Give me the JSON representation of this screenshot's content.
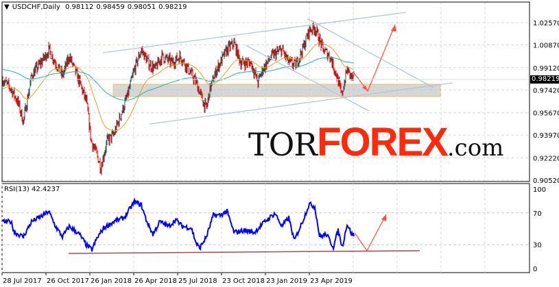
{
  "header": {
    "symbol": "USDCHF,Daily",
    "open": "0.98112",
    "high": "0.98459",
    "low": "0.98051",
    "close": "0.98219"
  },
  "rsi_label": "RSI(13) 42.4237",
  "current_price": "0.98219",
  "logo": {
    "tor": "TOR",
    "forex": "FOREX",
    "com": ".com"
  },
  "colors": {
    "bull": "#2f4f4f",
    "bear": "#ff0000",
    "ema_fast": "#daa520",
    "ema_slow": "#20b2aa",
    "rsi": "#0000ff",
    "arrow": "#ff4c3b",
    "trend": "#b0c4de"
  },
  "chart_data": [
    {
      "type": "candlestick",
      "title": "USDCHF,Daily",
      "ylim": [
        0.9052,
        1.0257
      ],
      "y_ticks": [
        "1.02570",
        "1.00870",
        "0.99120",
        "0.97420",
        "0.95670",
        "0.93970",
        "0.92220",
        "0.90520"
      ],
      "x_ticks": [
        "28 Jul 2017",
        "26 Oct 2017",
        "26 Jan 2018",
        "26 Apr 2018",
        "25 Jul 2018",
        "23 Oct 2018",
        "23 Jan 2019",
        "23 Apr 2019"
      ],
      "close_keypoints_bar_price": [
        [
          0,
          0.982
        ],
        [
          12,
          0.975
        ],
        [
          22,
          0.965
        ],
        [
          30,
          0.95
        ],
        [
          42,
          0.985
        ],
        [
          62,
          1.0
        ],
        [
          67,
          1.005
        ],
        [
          77,
          0.995
        ],
        [
          87,
          0.985
        ],
        [
          97,
          1.0
        ],
        [
          112,
          0.98
        ],
        [
          122,
          0.965
        ],
        [
          129,
          0.935
        ],
        [
          137,
          0.925
        ],
        [
          143,
          0.915
        ],
        [
          152,
          0.935
        ],
        [
          162,
          0.94
        ],
        [
          172,
          0.955
        ],
        [
          182,
          0.97
        ],
        [
          192,
          0.99
        ],
        [
          202,
          1.005
        ],
        [
          212,
          0.995
        ],
        [
          222,
          0.99
        ],
        [
          232,
          1.0
        ],
        [
          247,
          0.995
        ],
        [
          259,
          1.0
        ],
        [
          267,
          0.993
        ],
        [
          282,
          0.98
        ],
        [
          292,
          0.965
        ],
        [
          297,
          0.96
        ],
        [
          302,
          0.975
        ],
        [
          312,
          0.99
        ],
        [
          327,
          1.005
        ],
        [
          337,
          1.01
        ],
        [
          347,
          0.995
        ],
        [
          362,
          0.995
        ],
        [
          372,
          0.98
        ],
        [
          379,
          0.99
        ],
        [
          392,
          1.0
        ],
        [
          407,
          1.005
        ],
        [
          417,
          0.995
        ],
        [
          427,
          0.993
        ],
        [
          437,
          1.005
        ],
        [
          447,
          1.02
        ],
        [
          455,
          1.022
        ],
        [
          467,
          1.005
        ],
        [
          477,
          1.0
        ],
        [
          487,
          0.985
        ],
        [
          494,
          0.97
        ],
        [
          502,
          0.99
        ],
        [
          507,
          0.985
        ],
        [
          512,
          0.98219
        ]
      ]
    },
    {
      "type": "line",
      "title": "RSI(13) 42.4237",
      "ylim": [
        0,
        100
      ],
      "y_ticks": [
        "100",
        "70",
        "30",
        "0"
      ],
      "keypoints_bar_value": [
        [
          0,
          58.8
        ],
        [
          12,
          59
        ],
        [
          17,
          45.5
        ],
        [
          30,
          40
        ],
        [
          42,
          59
        ],
        [
          59,
          67
        ],
        [
          67,
          72
        ],
        [
          77,
          53
        ],
        [
          87,
          40
        ],
        [
          97,
          53
        ],
        [
          112,
          43
        ],
        [
          122,
          29.5
        ],
        [
          130,
          23.6
        ],
        [
          137,
          37.5
        ],
        [
          147,
          51
        ],
        [
          162,
          59
        ],
        [
          177,
          64
        ],
        [
          192,
          84
        ],
        [
          202,
          80
        ],
        [
          209,
          61.5
        ],
        [
          219,
          43
        ],
        [
          229,
          59
        ],
        [
          242,
          53
        ],
        [
          252,
          61.5
        ],
        [
          262,
          53
        ],
        [
          275,
          51
        ],
        [
          282,
          32
        ],
        [
          287,
          25.5
        ],
        [
          297,
          40
        ],
        [
          307,
          67
        ],
        [
          317,
          67
        ],
        [
          327,
          72
        ],
        [
          337,
          45.5
        ],
        [
          352,
          48
        ],
        [
          367,
          45.5
        ],
        [
          382,
          59
        ],
        [
          397,
          69.5
        ],
        [
          407,
          53
        ],
        [
          417,
          64
        ],
        [
          425,
          35
        ],
        [
          437,
          59
        ],
        [
          447,
          81.5
        ],
        [
          455,
          77.5
        ],
        [
          462,
          40
        ],
        [
          472,
          43
        ],
        [
          482,
          27
        ],
        [
          489,
          48
        ],
        [
          495,
          27
        ],
        [
          502,
          56
        ],
        [
          509,
          43
        ],
        [
          512,
          42.4237
        ]
      ]
    }
  ]
}
